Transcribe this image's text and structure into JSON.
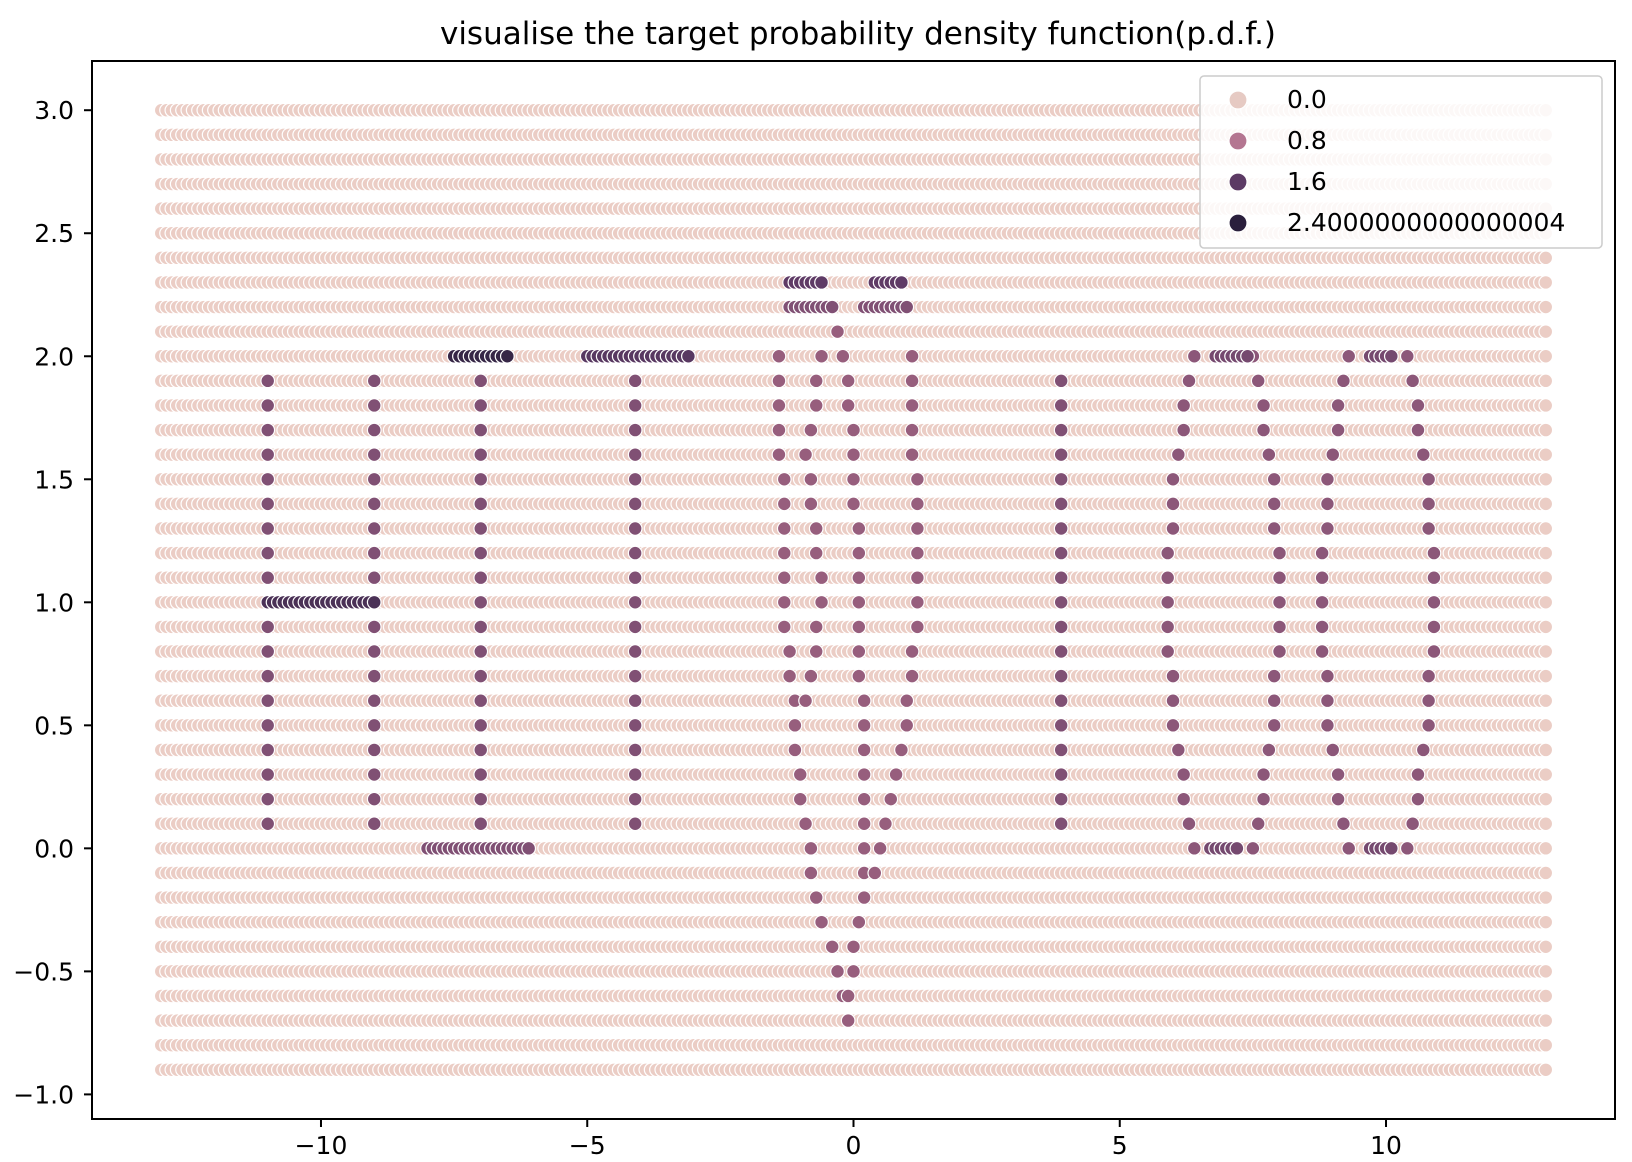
{
  "chart_data": {
    "type": "scatter",
    "title": "visualise the target probability density function(p.d.f.)",
    "xlabel": "",
    "ylabel": "",
    "xlim": [
      -14.3,
      14.3
    ],
    "ylim": [
      -1.1,
      3.2
    ],
    "x_ticks": [
      -10,
      -5,
      0,
      5,
      10
    ],
    "x_tick_labels": [
      "−10",
      "−5",
      "0",
      "5",
      "10"
    ],
    "y_ticks": [
      -1.0,
      -0.5,
      0.0,
      0.5,
      1.0,
      1.5,
      2.0,
      2.5,
      3.0
    ],
    "y_tick_labels": [
      "−1.0",
      "−0.5",
      "0.0",
      "0.5",
      "1.0",
      "1.5",
      "2.0",
      "2.5",
      "3.0"
    ],
    "grid": false,
    "legend_position": "top-right",
    "hue_palette": [
      {
        "value": 0.0,
        "color": "#ebcdc5"
      },
      {
        "value": 0.8,
        "color": "#b8738b"
      },
      {
        "value": 1.6,
        "color": "#5f3b66"
      },
      {
        "value": 2.4,
        "color": "#291f3b"
      }
    ],
    "legend": [
      {
        "label": "0.0",
        "color": "#e6cac3"
      },
      {
        "label": "0.8",
        "color": "#b47691"
      },
      {
        "label": "1.6",
        "color": "#5c3a64"
      },
      {
        "label": "2.4000000000000004",
        "color": "#2a1f3c"
      }
    ],
    "grid_points": {
      "x_start": -13.0,
      "x_end": 13.0,
      "x_step": 0.1,
      "y_start": -0.9,
      "y_end": 3.0,
      "y_step": 0.1,
      "background_hue": 0.0
    },
    "high_density_points": [
      {
        "x": -11.0,
        "y_from": 0.1,
        "y_to": 1.9,
        "y_step": 0.1,
        "hue": 1.3
      },
      {
        "x": -9.0,
        "y_from": 0.1,
        "y_to": 1.9,
        "y_step": 0.1,
        "hue": 1.3
      },
      {
        "x": -7.0,
        "y_from": 0.1,
        "y_to": 1.9,
        "y_step": 0.1,
        "hue": 1.3
      },
      {
        "x": -4.1,
        "y_from": 0.1,
        "y_to": 1.9,
        "y_step": 0.1,
        "hue": 1.3
      },
      {
        "x": 3.9,
        "y_from": 0.1,
        "y_to": 1.9,
        "y_step": 0.1,
        "hue": 1.3
      },
      {
        "y": 1.0,
        "x_from": -11.0,
        "x_to": -9.0,
        "x_step": 0.1,
        "hue": 1.9
      },
      {
        "y": 2.0,
        "x_from": -7.5,
        "x_to": -6.5,
        "x_step": 0.1,
        "hue": 2.2
      },
      {
        "y": 2.0,
        "x_from": -5.0,
        "x_to": -3.1,
        "x_step": 0.1,
        "hue": 1.7
      },
      {
        "y": 0.0,
        "x_from": -8.0,
        "x_to": -6.1,
        "x_step": 0.1,
        "hue": 1.3
      },
      {
        "y": 2.3,
        "x_from": -1.2,
        "x_to": -0.6,
        "x_step": 0.1,
        "hue": 1.6
      },
      {
        "y": 2.2,
        "x_from": -1.2,
        "x_to": -0.4,
        "x_step": 0.1,
        "hue": 1.3
      },
      {
        "y": 2.3,
        "x_from": 0.4,
        "x_to": 0.9,
        "x_step": 0.1,
        "hue": 1.6
      },
      {
        "y": 2.2,
        "x_from": 0.2,
        "x_to": 1.0,
        "x_step": 0.1,
        "hue": 1.3
      },
      {
        "y": 2.0,
        "x_from": 6.8,
        "x_to": 7.4,
        "x_step": 0.1,
        "hue": 1.4
      },
      {
        "y": 2.0,
        "x_from": 9.7,
        "x_to": 10.1,
        "x_step": 0.1,
        "hue": 1.4
      },
      {
        "y": 0.0,
        "x_from": 6.7,
        "x_to": 7.2,
        "x_step": 0.1,
        "hue": 1.4
      },
      {
        "y": 0.0,
        "x_from": 9.7,
        "x_to": 10.1,
        "x_step": 0.1,
        "hue": 1.4
      },
      {
        "curve": [
          [
            -1.4,
            2.0
          ],
          [
            -1.3,
            1.0
          ],
          [
            -1.0,
            0.2
          ],
          [
            -0.6,
            -0.3
          ],
          [
            -0.3,
            -0.5
          ],
          [
            -0.1,
            -0.7
          ]
        ],
        "hue": 1.1
      },
      {
        "curve": [
          [
            -0.3,
            2.1
          ],
          [
            0.0,
            1.7
          ],
          [
            0.2,
            0.3
          ],
          [
            0.2,
            -0.2
          ],
          [
            0.0,
            -0.4
          ],
          [
            -0.1,
            -0.6
          ]
        ],
        "hue": 1.1
      },
      {
        "curve": [
          [
            1.1,
            2.0
          ],
          [
            1.2,
            1.0
          ],
          [
            0.9,
            0.4
          ],
          [
            0.5,
            0.0
          ],
          [
            0.2,
            -0.2
          ]
        ],
        "hue": 1.1
      },
      {
        "curve": [
          [
            -0.6,
            2.0
          ],
          [
            -0.9,
            1.6
          ],
          [
            -0.6,
            1.0
          ],
          [
            -0.9,
            0.6
          ]
        ],
        "hue": 1.1
      },
      {
        "curve": [
          [
            6.4,
            2.0
          ],
          [
            6.0,
            1.5
          ],
          [
            5.9,
            1.0
          ],
          [
            6.0,
            0.5
          ],
          [
            6.4,
            0.0
          ]
        ],
        "hue": 1.2
      },
      {
        "curve": [
          [
            7.5,
            2.0
          ],
          [
            7.9,
            1.5
          ],
          [
            8.0,
            1.0
          ],
          [
            7.9,
            0.5
          ],
          [
            7.5,
            0.0
          ]
        ],
        "hue": 1.2
      },
      {
        "curve": [
          [
            9.3,
            2.0
          ],
          [
            8.9,
            1.5
          ],
          [
            8.8,
            1.0
          ],
          [
            8.9,
            0.5
          ],
          [
            9.3,
            0.0
          ]
        ],
        "hue": 1.2
      },
      {
        "curve": [
          [
            10.4,
            2.0
          ],
          [
            10.8,
            1.5
          ],
          [
            10.9,
            1.0
          ],
          [
            10.8,
            0.5
          ],
          [
            10.4,
            0.0
          ]
        ],
        "hue": 1.2
      }
    ]
  }
}
